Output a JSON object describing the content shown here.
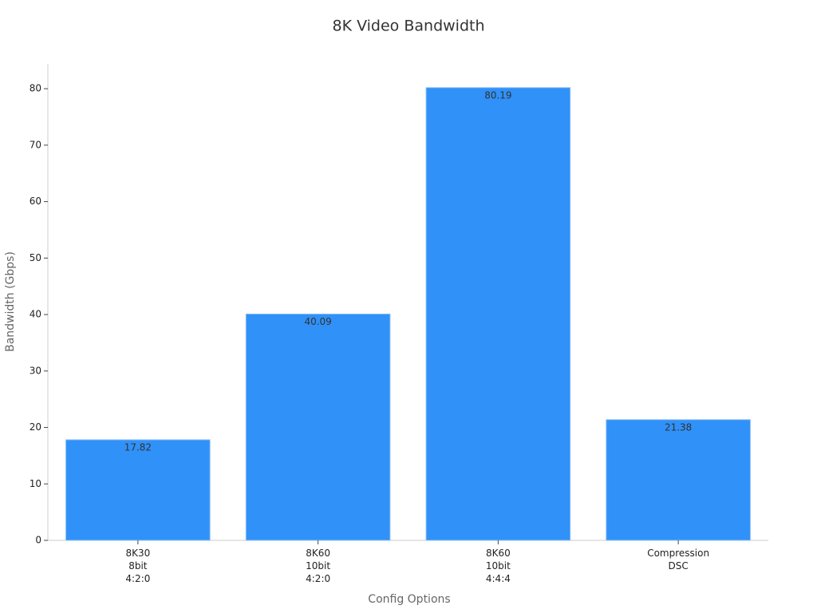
{
  "chart_data": {
    "type": "bar",
    "title": "8K Video Bandwidth",
    "x_label": "Config Options",
    "y_label": "Bandwidth (Gbps)",
    "categories": [
      "8K30\n8bit\n4:2:0",
      "8K60\n10bit\n4:2:0",
      "8K60\n10bit\n4:4:4",
      "Compression\nDSC"
    ],
    "values": [
      17.82,
      40.09,
      80.19,
      21.38
    ],
    "color": "#3091f8",
    "ylim": [
      0,
      84.4
    ],
    "yticks": [
      0,
      10,
      20,
      30,
      40,
      50,
      60,
      70,
      80
    ],
    "grid": false
  }
}
